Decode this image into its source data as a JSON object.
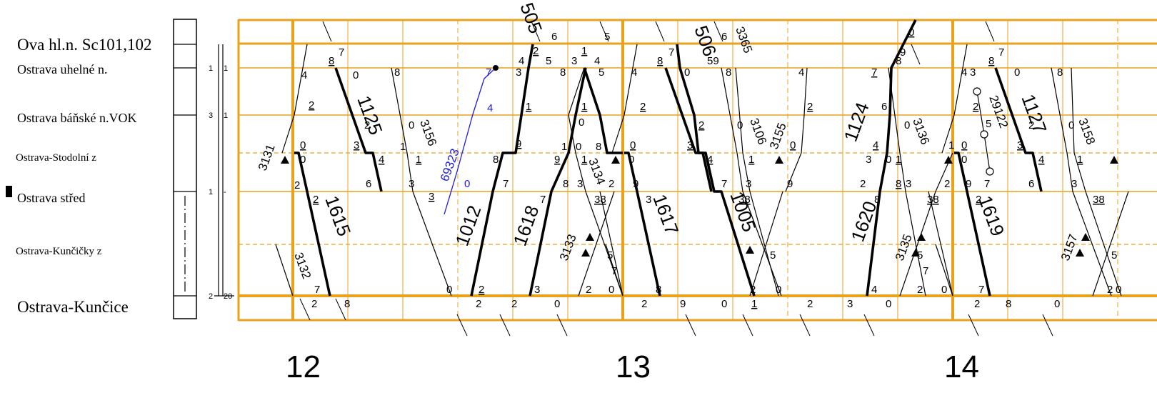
{
  "stations": [
    {
      "name": "Ova hl.n. Sc101,102"
    },
    {
      "name": "Ostrava uhelné n."
    },
    {
      "name": "Ostrava báňské n.VOK"
    },
    {
      "name": "Ostrava-Stodolní z"
    },
    {
      "name": "Ostrava střed"
    },
    {
      "name": "Ostrava-Kunčičky z"
    },
    {
      "name": "Ostrava-Kunčice"
    }
  ],
  "track_numbers": [
    "1",
    "1",
    "3",
    "1",
    "1",
    "-",
    "2",
    "20"
  ],
  "hours": [
    "12",
    "13",
    "14"
  ],
  "trains": [
    {
      "number": "1125"
    },
    {
      "number": "3156"
    },
    {
      "number": "3131"
    },
    {
      "number": "1615"
    },
    {
      "number": "3132"
    },
    {
      "number": "69323"
    },
    {
      "number": "505"
    },
    {
      "number": "1012"
    },
    {
      "number": "1618"
    },
    {
      "number": "3134"
    },
    {
      "number": "3133"
    },
    {
      "number": "506"
    },
    {
      "number": "3365"
    },
    {
      "number": "1617"
    },
    {
      "number": "3106"
    },
    {
      "number": "3155"
    },
    {
      "number": "1005"
    },
    {
      "number": "1124"
    },
    {
      "number": "3136"
    },
    {
      "number": "1620"
    },
    {
      "number": "3135"
    },
    {
      "number": "29122"
    },
    {
      "number": "1127"
    },
    {
      "number": "3158"
    },
    {
      "number": "1619"
    },
    {
      "number": "3157"
    }
  ],
  "colors": {
    "grid": "#e8a21c",
    "train": "#000000",
    "special": "#1a1adb"
  }
}
